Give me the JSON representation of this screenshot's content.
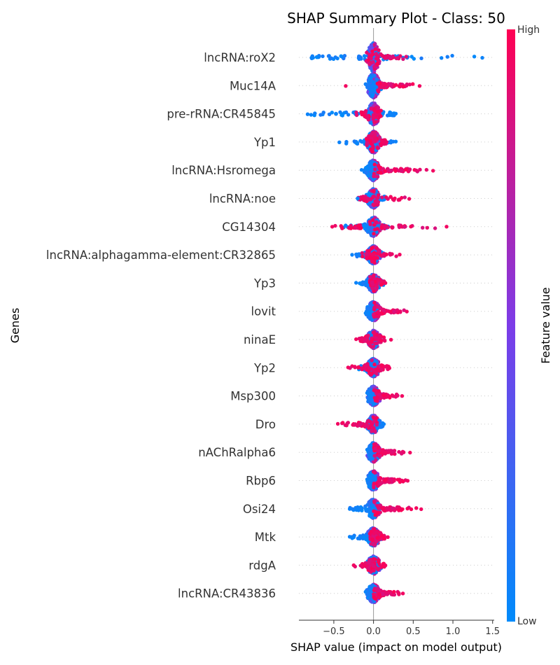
{
  "chart_data": {
    "type": "scatter",
    "subtype": "beeswarm",
    "title": "SHAP Summary Plot - Class: 50",
    "xlabel": "SHAP value (impact on model output)",
    "ylabel": "Genes",
    "colorbar": {
      "label": "Feature value",
      "high": "High",
      "low": "Low"
    },
    "xlim": [
      -0.94,
      1.52
    ],
    "xticks": [
      -0.5,
      0.0,
      0.5,
      1.0,
      1.5
    ],
    "xtick_labels": [
      "−0.5",
      "0.0",
      "0.5",
      "1.0",
      "1.5"
    ],
    "grid": false,
    "colors": {
      "low": "#008bfb",
      "mid": "#7c3ce8",
      "high": "#ff0052",
      "zero_line": "#999999"
    },
    "features": [
      {
        "name": "lncRNA:roX2",
        "min": -0.78,
        "max": 1.37,
        "low_range": [
          -0.78,
          1.37
        ],
        "high_range": [
          -0.1,
          0.45
        ],
        "width": 1.0
      },
      {
        "name": "Muc14A",
        "min": -0.35,
        "max": 0.58,
        "low_range": [
          -0.1,
          0.15
        ],
        "high_range": [
          0.05,
          0.58
        ],
        "width": 0.8
      },
      {
        "name": "pre-rRNA:CR45845",
        "min": -0.83,
        "max": 0.28,
        "low_range": [
          -0.83,
          0.28
        ],
        "high_range": [
          -0.25,
          0.1
        ],
        "width": 0.7
      },
      {
        "name": "Yp1",
        "min": -0.43,
        "max": 0.28,
        "low_range": [
          -0.43,
          0.28
        ],
        "high_range": [
          -0.1,
          0.2
        ],
        "width": 0.7
      },
      {
        "name": "lncRNA:Hsromega",
        "min": -0.15,
        "max": 0.75,
        "low_range": [
          -0.15,
          0.05
        ],
        "high_range": [
          0.0,
          0.75
        ],
        "width": 0.65
      },
      {
        "name": "lncRNA:noe",
        "min": -0.2,
        "max": 0.45,
        "low_range": [
          -0.2,
          0.2
        ],
        "high_range": [
          -0.2,
          0.45
        ],
        "width": 0.6
      },
      {
        "name": "CG14304",
        "min": -0.52,
        "max": 0.92,
        "low_range": [
          -0.4,
          0.2
        ],
        "high_range": [
          -0.52,
          0.92
        ],
        "width": 0.6
      },
      {
        "name": "lncRNA:alphagamma-element:CR32865",
        "min": -0.27,
        "max": 0.33,
        "low_range": [
          -0.27,
          0.15
        ],
        "high_range": [
          -0.15,
          0.33
        ],
        "width": 0.55
      },
      {
        "name": "Yp3",
        "min": -0.22,
        "max": 0.15,
        "low_range": [
          -0.22,
          0.15
        ],
        "high_range": [
          -0.05,
          0.15
        ],
        "width": 0.55
      },
      {
        "name": "lovit",
        "min": -0.1,
        "max": 0.42,
        "low_range": [
          -0.1,
          0.05
        ],
        "high_range": [
          0.0,
          0.42
        ],
        "width": 0.6
      },
      {
        "name": "ninaE",
        "min": -0.22,
        "max": 0.22,
        "low_range": [
          -0.1,
          0.1
        ],
        "high_range": [
          -0.22,
          0.22
        ],
        "width": 0.55
      },
      {
        "name": "Yp2",
        "min": -0.32,
        "max": 0.2,
        "low_range": [
          -0.2,
          0.1
        ],
        "high_range": [
          -0.32,
          0.2
        ],
        "width": 0.55
      },
      {
        "name": "Msp300",
        "min": -0.08,
        "max": 0.36,
        "low_range": [
          -0.08,
          0.05
        ],
        "high_range": [
          0.0,
          0.36
        ],
        "width": 0.6
      },
      {
        "name": "Dro",
        "min": -0.45,
        "max": 0.13,
        "low_range": [
          -0.1,
          0.13
        ],
        "high_range": [
          -0.45,
          0.05
        ],
        "width": 0.55
      },
      {
        "name": "nAChRalpha6",
        "min": -0.08,
        "max": 0.46,
        "low_range": [
          -0.08,
          0.05
        ],
        "high_range": [
          0.0,
          0.46
        ],
        "width": 0.6
      },
      {
        "name": "Rbp6",
        "min": -0.08,
        "max": 0.43,
        "low_range": [
          -0.08,
          0.05
        ],
        "high_range": [
          0.0,
          0.43
        ],
        "width": 0.6
      },
      {
        "name": "Osi24",
        "min": -0.3,
        "max": 0.6,
        "low_range": [
          -0.3,
          0.1
        ],
        "high_range": [
          0.0,
          0.6
        ],
        "width": 0.6
      },
      {
        "name": "Mtk",
        "min": -0.3,
        "max": 0.18,
        "low_range": [
          -0.3,
          0.1
        ],
        "high_range": [
          -0.05,
          0.18
        ],
        "width": 0.55
      },
      {
        "name": "rdgA",
        "min": -0.25,
        "max": 0.15,
        "low_range": [
          -0.1,
          0.1
        ],
        "high_range": [
          -0.25,
          0.15
        ],
        "width": 0.55
      },
      {
        "name": "lncRNA:CR43836",
        "min": -0.1,
        "max": 0.37,
        "low_range": [
          -0.1,
          0.05
        ],
        "high_range": [
          0.0,
          0.37
        ],
        "width": 0.55
      }
    ]
  }
}
